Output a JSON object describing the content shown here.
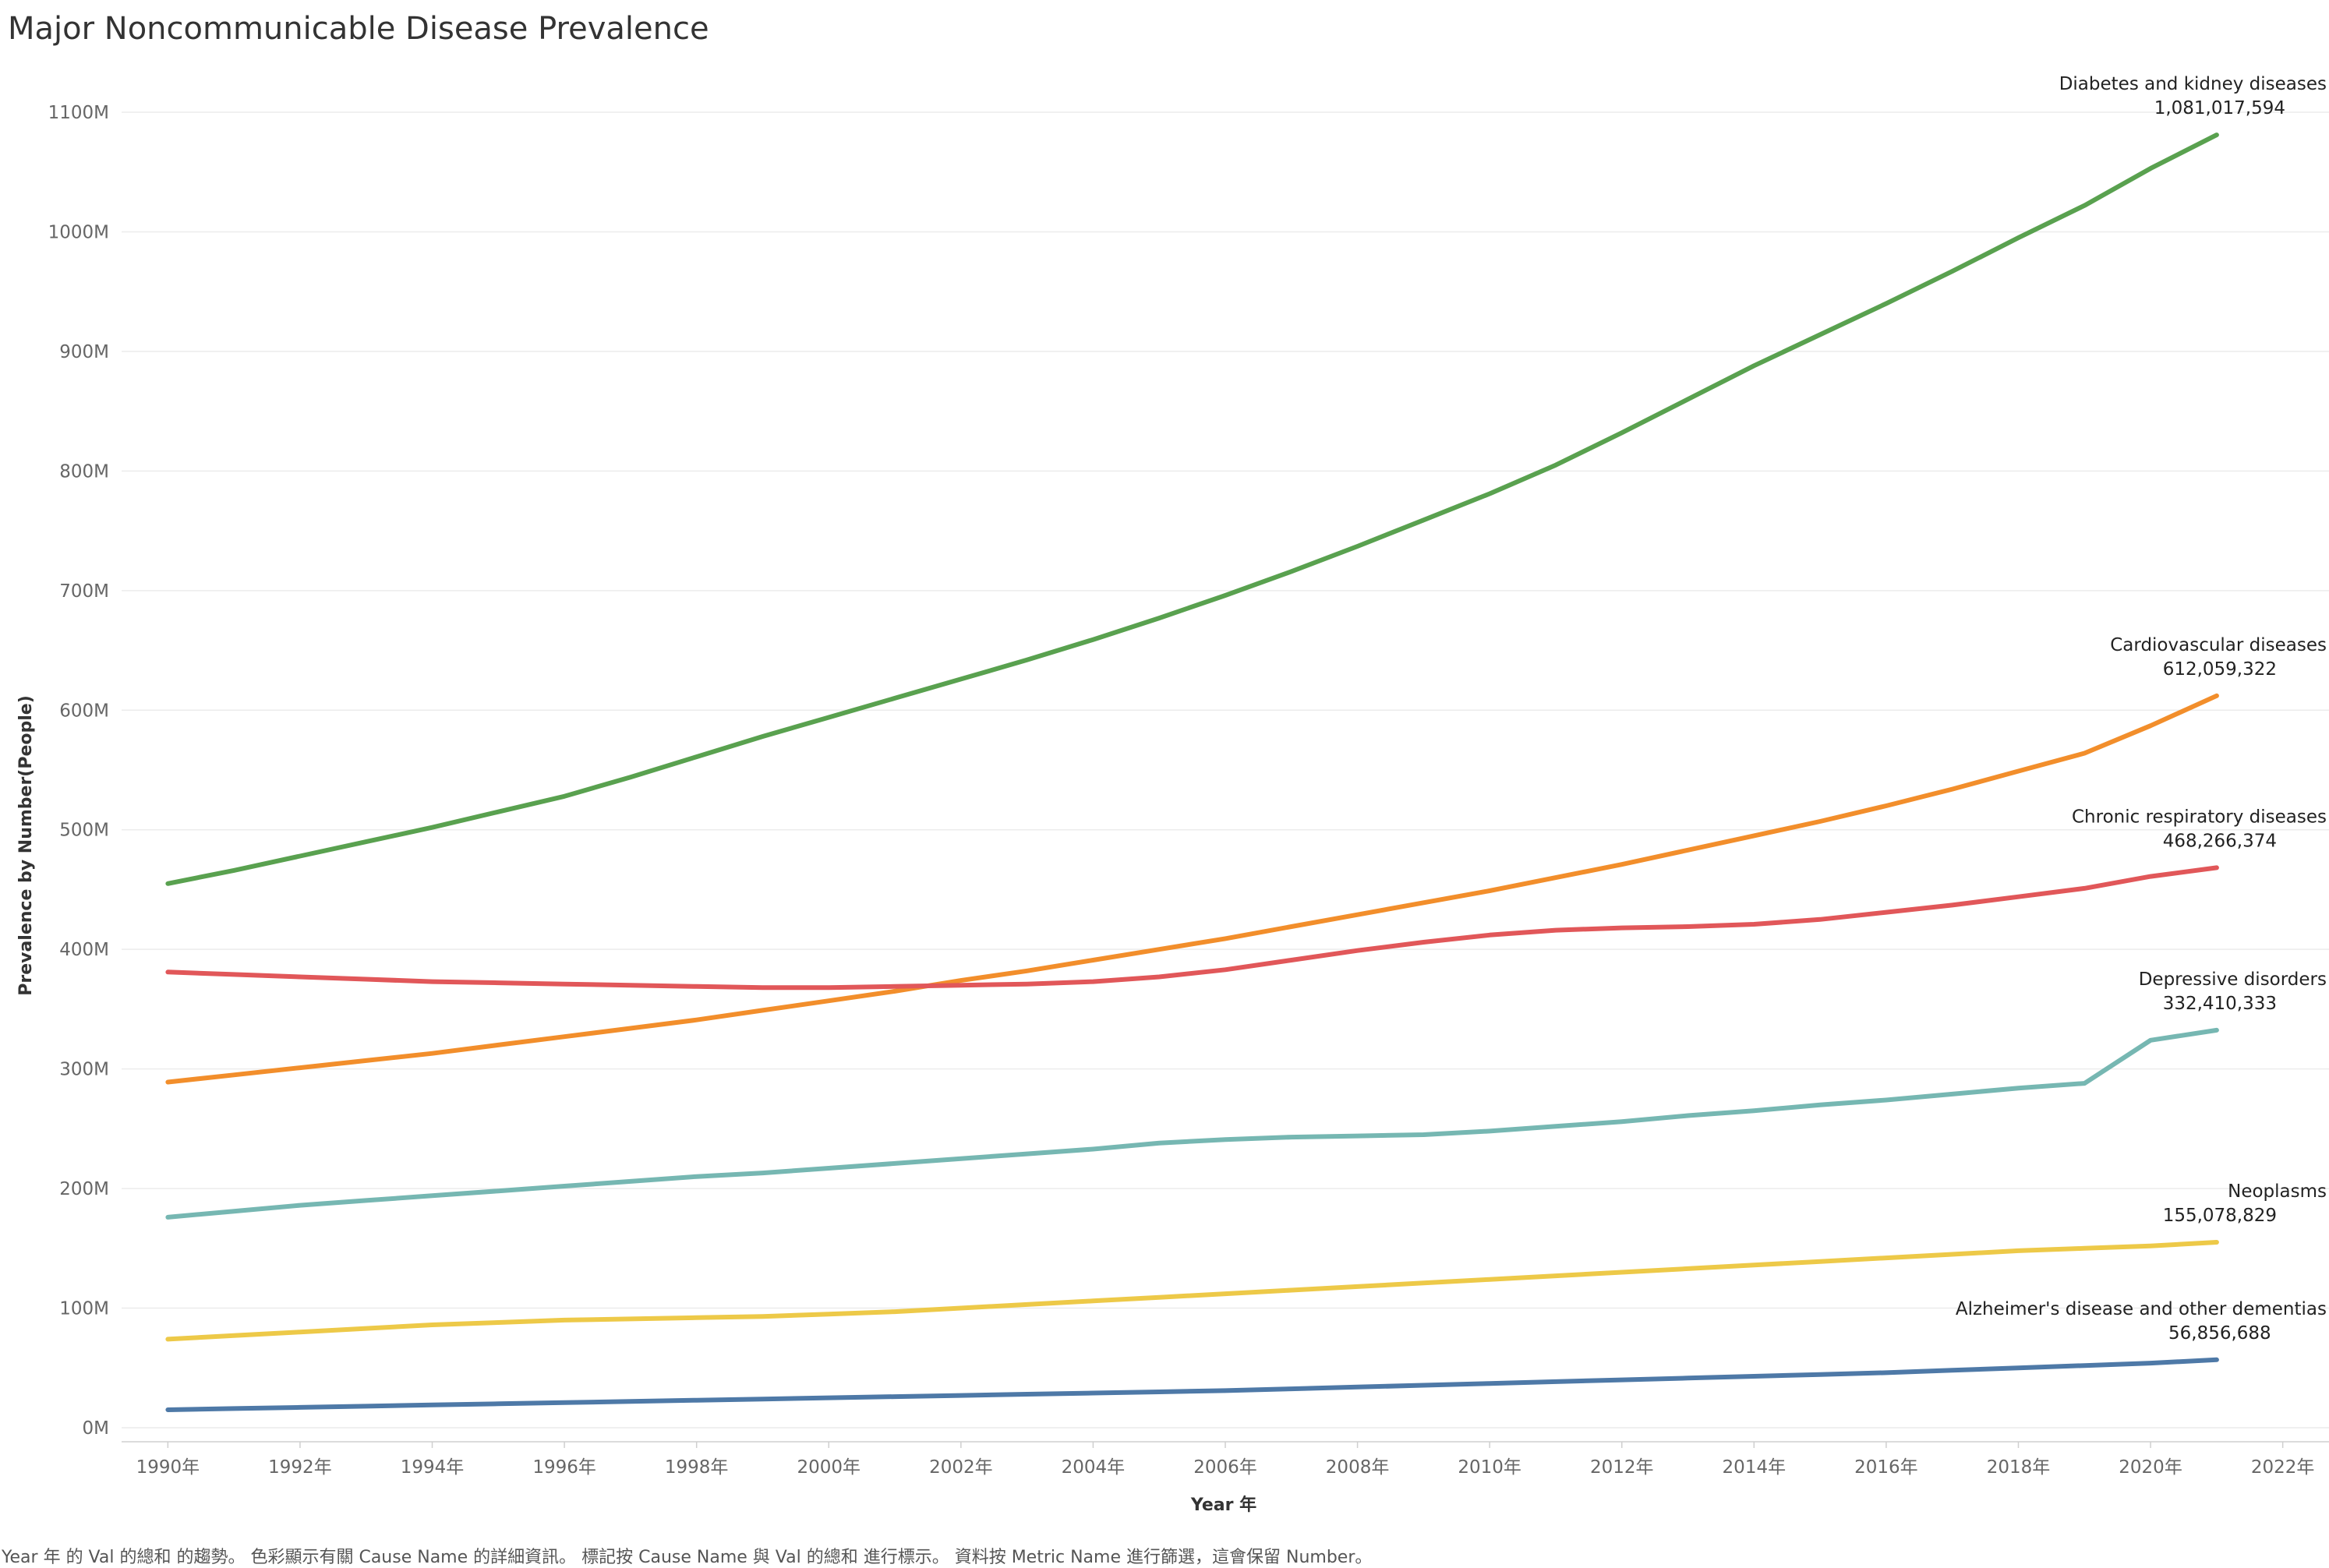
{
  "chart_data": {
    "type": "line",
    "title": "Major Noncommunicable Disease Prevalence",
    "xlabel": "Year 年",
    "ylabel": "Prevalence by Number(People)",
    "x_tick_labels": [
      "1990年",
      "1992年",
      "1994年",
      "1996年",
      "1998年",
      "2000年",
      "2002年",
      "2004年",
      "2006年",
      "2008年",
      "2010年",
      "2012年",
      "2014年",
      "2016年",
      "2018年",
      "2020年",
      "2022年"
    ],
    "y_tick_labels": [
      "0M",
      "100M",
      "200M",
      "300M",
      "400M",
      "500M",
      "600M",
      "700M",
      "800M",
      "900M",
      "1000M",
      "1100M"
    ],
    "xlim": [
      1989.3,
      2022.7
    ],
    "ylim": [
      0,
      1100000000
    ],
    "grid": true,
    "legend": "none (direct labels at line ends)",
    "x": [
      1990,
      1991,
      1992,
      1993,
      1994,
      1995,
      1996,
      1997,
      1998,
      1999,
      2000,
      2001,
      2002,
      2003,
      2004,
      2005,
      2006,
      2007,
      2008,
      2009,
      2010,
      2011,
      2012,
      2013,
      2014,
      2015,
      2016,
      2017,
      2018,
      2019,
      2020,
      2021
    ],
    "series": [
      {
        "name": "Diabetes and kidney diseases",
        "color": "#59a14f",
        "end_label": "1,081,017,594",
        "values": [
          455000000,
          466000000,
          478000000,
          490000000,
          502000000,
          515000000,
          528000000,
          544000000,
          561000000,
          578000000,
          594000000,
          610000000,
          626000000,
          642000000,
          659000000,
          677000000,
          696000000,
          716000000,
          737000000,
          759000000,
          781000000,
          805000000,
          832000000,
          860000000,
          888000000,
          914000000,
          940000000,
          967000000,
          995000000,
          1022000000,
          1053000000,
          1081017594
        ]
      },
      {
        "name": "Cardiovascular diseases",
        "color": "#f28e2b",
        "end_label": "612,059,322",
        "values": [
          289000000,
          295000000,
          301000000,
          307000000,
          313000000,
          320000000,
          327000000,
          334000000,
          341000000,
          349000000,
          357000000,
          365000000,
          374000000,
          382000000,
          391000000,
          400000000,
          409000000,
          419000000,
          429000000,
          439000000,
          449000000,
          460000000,
          471000000,
          483000000,
          495000000,
          507000000,
          520000000,
          534000000,
          549000000,
          564000000,
          587000000,
          612059322
        ]
      },
      {
        "name": "Chronic respiratory diseases",
        "color": "#e15759",
        "end_label": "468,266,374",
        "values": [
          381000000,
          379000000,
          377000000,
          375000000,
          373000000,
          372000000,
          371000000,
          370000000,
          369000000,
          368000000,
          368000000,
          369000000,
          370000000,
          371000000,
          373000000,
          377000000,
          383000000,
          391000000,
          399000000,
          406000000,
          412000000,
          416000000,
          418000000,
          419000000,
          421000000,
          425000000,
          431000000,
          437000000,
          444000000,
          451000000,
          461000000,
          468266374
        ]
      },
      {
        "name": "Depressive disorders",
        "color": "#76b7b2",
        "end_label": "332,410,333",
        "values": [
          176000000,
          181000000,
          186000000,
          190000000,
          194000000,
          198000000,
          202000000,
          206000000,
          210000000,
          213000000,
          217000000,
          221000000,
          225000000,
          229000000,
          233000000,
          238000000,
          241000000,
          243000000,
          244000000,
          245000000,
          248000000,
          252000000,
          256000000,
          261000000,
          265000000,
          270000000,
          274000000,
          279000000,
          284000000,
          288000000,
          324000000,
          332410333
        ]
      },
      {
        "name": "Neoplasms",
        "color": "#edc948",
        "end_label": "155,078,829",
        "values": [
          74000000,
          77000000,
          80000000,
          83000000,
          86000000,
          88000000,
          90000000,
          91000000,
          92000000,
          93000000,
          95000000,
          97000000,
          100000000,
          103000000,
          106000000,
          109000000,
          112000000,
          115000000,
          118000000,
          121000000,
          124000000,
          127000000,
          130000000,
          133000000,
          136000000,
          139000000,
          142000000,
          145000000,
          148000000,
          150000000,
          152000000,
          155078829
        ]
      },
      {
        "name": "Alzheimer's disease and other dementias",
        "color": "#4e79a7",
        "end_label": "56,856,688",
        "values": [
          15000000,
          16000000,
          17000000,
          18000000,
          19000000,
          20000000,
          21000000,
          22000000,
          23000000,
          24000000,
          25000000,
          26000000,
          27000000,
          28000000,
          29000000,
          30000000,
          31000000,
          32500000,
          34000000,
          35500000,
          37000000,
          38500000,
          40000000,
          41500000,
          43000000,
          44500000,
          46000000,
          48000000,
          50000000,
          52000000,
          54000000,
          56856688
        ]
      }
    ]
  },
  "caption": "Year 年 的 Val 的總和 的趨勢。 色彩顯示有關 Cause Name 的詳細資訊。 標記按 Cause Name 與 Val 的總和 進行標示。 資料按 Metric Name 進行篩選，這會保留 Number。"
}
